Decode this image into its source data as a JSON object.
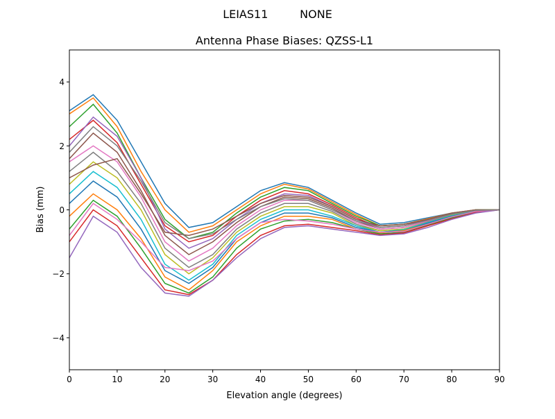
{
  "chart_data": {
    "type": "line",
    "suptitle": "LEIAS11         NONE",
    "title": "Antenna Phase Biases: QZSS-L1",
    "xlabel": "Elevation angle (degrees)",
    "ylabel": "Bias (mm)",
    "xlim": [
      0,
      90
    ],
    "ylim": [
      -5,
      5
    ],
    "xticks": [
      0,
      10,
      20,
      30,
      40,
      50,
      60,
      70,
      80,
      90
    ],
    "yticks": [
      -4,
      -2,
      0,
      2,
      4
    ],
    "ytick_labels": [
      "−4",
      "−2",
      "0",
      "2",
      "4"
    ],
    "grid": false,
    "legend": "none",
    "colors": [
      "#1f77b4",
      "#ff7f0e",
      "#2ca02c",
      "#d62728",
      "#9467bd",
      "#8c564b",
      "#e377c2",
      "#7f7f7f",
      "#bcbd22",
      "#17becf"
    ],
    "x": [
      0,
      5,
      10,
      15,
      20,
      25,
      30,
      35,
      40,
      45,
      50,
      55,
      60,
      65,
      70,
      75,
      80,
      85,
      90
    ],
    "series": [
      {
        "values": [
          3.1,
          3.6,
          2.8,
          1.5,
          0.2,
          -0.55,
          -0.4,
          0.1,
          0.6,
          0.85,
          0.7,
          0.3,
          -0.1,
          -0.45,
          -0.4,
          -0.25,
          -0.1,
          0,
          0
        ]
      },
      {
        "values": [
          3.0,
          3.5,
          2.6,
          1.2,
          0.0,
          -0.7,
          -0.5,
          0.0,
          0.5,
          0.8,
          0.65,
          0.25,
          -0.15,
          -0.5,
          -0.45,
          -0.28,
          -0.1,
          0,
          0
        ]
      },
      {
        "values": [
          2.6,
          3.3,
          2.4,
          1.0,
          -0.3,
          -0.9,
          -0.7,
          -0.1,
          0.4,
          0.7,
          0.6,
          0.2,
          -0.2,
          -0.5,
          -0.45,
          -0.3,
          -0.12,
          0,
          0
        ]
      },
      {
        "values": [
          2.2,
          2.8,
          2.1,
          0.8,
          -0.5,
          -1.0,
          -0.8,
          -0.2,
          0.3,
          0.6,
          0.5,
          0.15,
          -0.25,
          -0.55,
          -0.5,
          -0.3,
          -0.12,
          -0.02,
          0
        ]
      },
      {
        "values": [
          2.0,
          2.9,
          2.3,
          1.0,
          -0.6,
          -1.2,
          -0.9,
          -0.3,
          0.2,
          0.5,
          0.45,
          0.1,
          -0.3,
          -0.55,
          -0.5,
          -0.32,
          -0.13,
          -0.02,
          0
        ]
      },
      {
        "values": [
          1.6,
          2.4,
          1.8,
          0.6,
          -0.8,
          -1.4,
          -1.0,
          -0.4,
          0.1,
          0.4,
          0.35,
          0.05,
          -0.35,
          -0.6,
          -0.55,
          -0.35,
          -0.14,
          -0.02,
          0
        ]
      },
      {
        "values": [
          1.5,
          2.0,
          1.5,
          0.4,
          -1.0,
          -1.6,
          -1.2,
          -0.5,
          0.0,
          0.3,
          0.3,
          0.0,
          -0.4,
          -0.6,
          -0.55,
          -0.35,
          -0.15,
          -0.03,
          0
        ]
      },
      {
        "values": [
          1.2,
          1.8,
          1.2,
          0.2,
          -1.2,
          -1.8,
          -1.4,
          -0.6,
          -0.1,
          0.2,
          0.2,
          -0.05,
          -0.45,
          -0.65,
          -0.6,
          -0.38,
          -0.16,
          -0.03,
          0
        ]
      },
      {
        "values": [
          0.8,
          1.5,
          1.0,
          0.0,
          -1.4,
          -2.0,
          -1.5,
          -0.7,
          -0.2,
          0.1,
          0.1,
          -0.1,
          -0.5,
          -0.65,
          -0.6,
          -0.4,
          -0.17,
          -0.04,
          0
        ]
      },
      {
        "values": [
          0.5,
          1.2,
          0.7,
          -0.3,
          -1.7,
          -2.2,
          -1.7,
          -0.8,
          -0.3,
          0.0,
          0.0,
          -0.2,
          -0.5,
          -0.7,
          -0.62,
          -0.4,
          -0.18,
          -0.05,
          0
        ]
      },
      {
        "values": [
          0.2,
          0.9,
          0.4,
          -0.6,
          -1.9,
          -2.3,
          -1.8,
          -0.9,
          -0.4,
          -0.1,
          -0.1,
          -0.25,
          -0.55,
          -0.7,
          -0.65,
          -0.42,
          -0.2,
          -0.05,
          0
        ]
      },
      {
        "values": [
          -0.2,
          0.5,
          0.0,
          -0.9,
          -2.1,
          -2.5,
          -1.9,
          -1.0,
          -0.5,
          -0.2,
          -0.2,
          -0.3,
          -0.6,
          -0.72,
          -0.65,
          -0.45,
          -0.22,
          -0.06,
          0
        ]
      },
      {
        "values": [
          -0.6,
          0.3,
          -0.2,
          -1.2,
          -2.3,
          -2.6,
          -2.1,
          -1.2,
          -0.6,
          -0.35,
          -0.3,
          -0.4,
          -0.6,
          -0.75,
          -0.7,
          -0.48,
          -0.25,
          -0.07,
          0
        ]
      },
      {
        "values": [
          -1.0,
          0.0,
          -0.5,
          -1.5,
          -2.5,
          -2.65,
          -2.2,
          -1.4,
          -0.8,
          -0.5,
          -0.45,
          -0.55,
          -0.65,
          -0.78,
          -0.72,
          -0.5,
          -0.28,
          -0.08,
          0
        ]
      },
      {
        "values": [
          -1.5,
          -0.2,
          -0.7,
          -1.8,
          -2.6,
          -2.7,
          -2.2,
          -1.5,
          -0.9,
          -0.55,
          -0.5,
          -0.6,
          -0.7,
          -0.8,
          -0.75,
          -0.55,
          -0.3,
          -0.1,
          0
        ]
      },
      {
        "values": [
          1.0,
          1.4,
          1.6,
          0.5,
          -0.7,
          -0.8,
          -0.6,
          -0.2,
          0.2,
          0.45,
          0.4,
          0.1,
          -0.3,
          -0.5,
          -0.45,
          -0.3,
          -0.1,
          0,
          0
        ]
      },
      {
        "values": [
          -0.8,
          0.2,
          -0.3,
          -1.0,
          -1.8,
          -1.9,
          -1.6,
          -0.9,
          -0.4,
          -0.3,
          -0.35,
          -0.45,
          -0.6,
          -0.7,
          -0.68,
          -0.45,
          -0.22,
          -0.05,
          0
        ]
      },
      {
        "values": [
          1.8,
          2.6,
          2.0,
          0.9,
          -0.4,
          -0.9,
          -0.75,
          -0.3,
          0.1,
          0.35,
          0.3,
          0.0,
          -0.35,
          -0.55,
          -0.5,
          -0.33,
          -0.13,
          -0.02,
          0
        ]
      }
    ]
  }
}
